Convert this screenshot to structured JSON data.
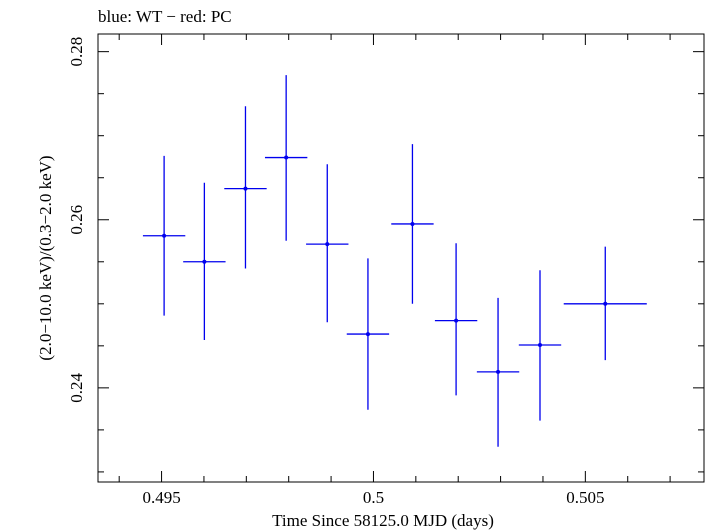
{
  "chart_data": {
    "type": "scatter",
    "title": "blue: WT − red: PC",
    "xlabel": "Time Since 58125.0 MJD (days)",
    "ylabel": "(2.0−10.0 keV)/(0.3−2.0 keV)",
    "xlim": [
      0.4935,
      0.5078
    ],
    "ylim": [
      0.2288,
      0.2821
    ],
    "x_ticks": [
      0.495,
      0.5,
      0.505
    ],
    "x_tick_labels": [
      "0.495",
      "0.5",
      "0.505"
    ],
    "y_ticks": [
      0.24,
      0.26,
      0.28
    ],
    "y_tick_labels": [
      "0.24",
      "0.26",
      "0.28"
    ],
    "grid": false,
    "series": [
      {
        "color": "#0000ee",
        "points": [
          {
            "x": 0.49506,
            "xerr": 0.0005,
            "y": 0.2581,
            "ylo": 0.2486,
            "yhi": 0.2676
          },
          {
            "x": 0.49601,
            "xerr": 0.0005,
            "y": 0.255,
            "ylo": 0.2457,
            "yhi": 0.2644
          },
          {
            "x": 0.49698,
            "xerr": 0.0005,
            "y": 0.2637,
            "ylo": 0.2542,
            "yhi": 0.2735
          },
          {
            "x": 0.49794,
            "xerr": 0.0005,
            "y": 0.2674,
            "ylo": 0.2575,
            "yhi": 0.2772
          },
          {
            "x": 0.49891,
            "xerr": 0.0005,
            "y": 0.2571,
            "ylo": 0.2478,
            "yhi": 0.2666
          },
          {
            "x": 0.49987,
            "xerr": 0.0005,
            "y": 0.2464,
            "ylo": 0.2374,
            "yhi": 0.2554
          },
          {
            "x": 0.50092,
            "xerr": 0.0005,
            "y": 0.2595,
            "ylo": 0.25,
            "yhi": 0.269
          },
          {
            "x": 0.50195,
            "xerr": 0.0005,
            "y": 0.248,
            "ylo": 0.2391,
            "yhi": 0.2572
          },
          {
            "x": 0.50294,
            "xerr": 0.0005,
            "y": 0.2419,
            "ylo": 0.233,
            "yhi": 0.2507
          },
          {
            "x": 0.50393,
            "xerr": 0.0005,
            "y": 0.2451,
            "ylo": 0.2361,
            "yhi": 0.254
          },
          {
            "x": 0.50547,
            "xerr": 0.00098,
            "y": 0.25,
            "ylo": 0.2433,
            "yhi": 0.2568
          }
        ]
      }
    ]
  }
}
